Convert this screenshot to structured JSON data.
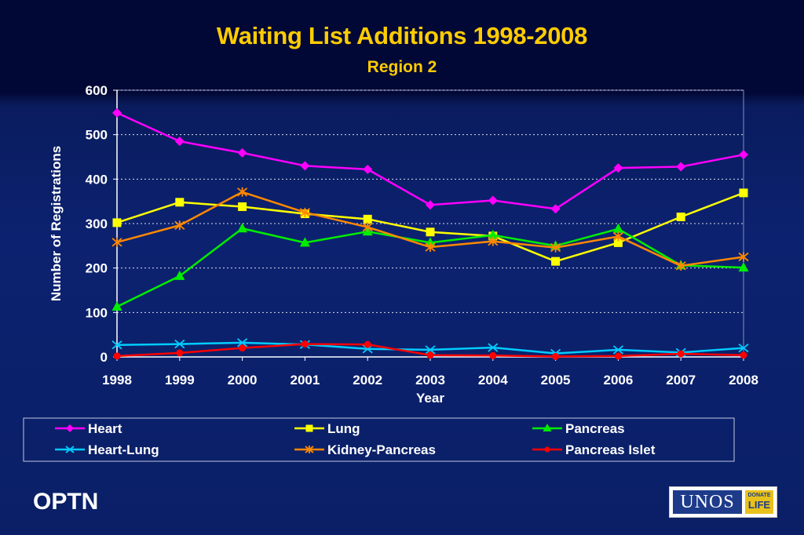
{
  "slide": {
    "footer_left": "OPTN",
    "logo": {
      "word": "UNOS",
      "badge_top": "DONATE",
      "badge_bottom": "LIFE"
    }
  },
  "chart_data": {
    "type": "line",
    "title": "Waiting List Additions 1998-2008",
    "subtitle": "Region 2",
    "xlabel": "Year",
    "ylabel": "Number of Registrations",
    "ylim": [
      0,
      600
    ],
    "yticks": [
      0,
      100,
      200,
      300,
      400,
      500,
      600
    ],
    "grid": "horizontal dotted",
    "legend_position": "bottom",
    "categories": [
      "1998",
      "1999",
      "2000",
      "2001",
      "2002",
      "2003",
      "2004",
      "2005",
      "2006",
      "2007",
      "2008"
    ],
    "series": [
      {
        "name": "Heart",
        "color": "#ff00ff",
        "marker": "diamond",
        "values": [
          549,
          485,
          459,
          430,
          422,
          342,
          352,
          333,
          425,
          428,
          455
        ]
      },
      {
        "name": "Lung",
        "color": "#ffff00",
        "marker": "square",
        "values": [
          302,
          348,
          338,
          322,
          310,
          281,
          272,
          215,
          257,
          315,
          369
        ]
      },
      {
        "name": "Pancreas",
        "color": "#00ee00",
        "marker": "triangle",
        "values": [
          113,
          182,
          289,
          257,
          282,
          257,
          274,
          250,
          288,
          206,
          201
        ]
      },
      {
        "name": "Heart-Lung",
        "color": "#00ccff",
        "marker": "x",
        "values": [
          27,
          29,
          32,
          28,
          18,
          16,
          21,
          8,
          16,
          10,
          20
        ]
      },
      {
        "name": "Kidney-Pancreas",
        "color": "#ff8800",
        "marker": "star",
        "values": [
          258,
          296,
          371,
          325,
          292,
          247,
          260,
          246,
          271,
          205,
          225
        ]
      },
      {
        "name": "Pancreas Islet",
        "color": "#ff0000",
        "marker": "circle",
        "values": [
          2,
          9,
          20,
          29,
          28,
          4,
          3,
          1,
          2,
          7,
          4
        ]
      }
    ]
  }
}
